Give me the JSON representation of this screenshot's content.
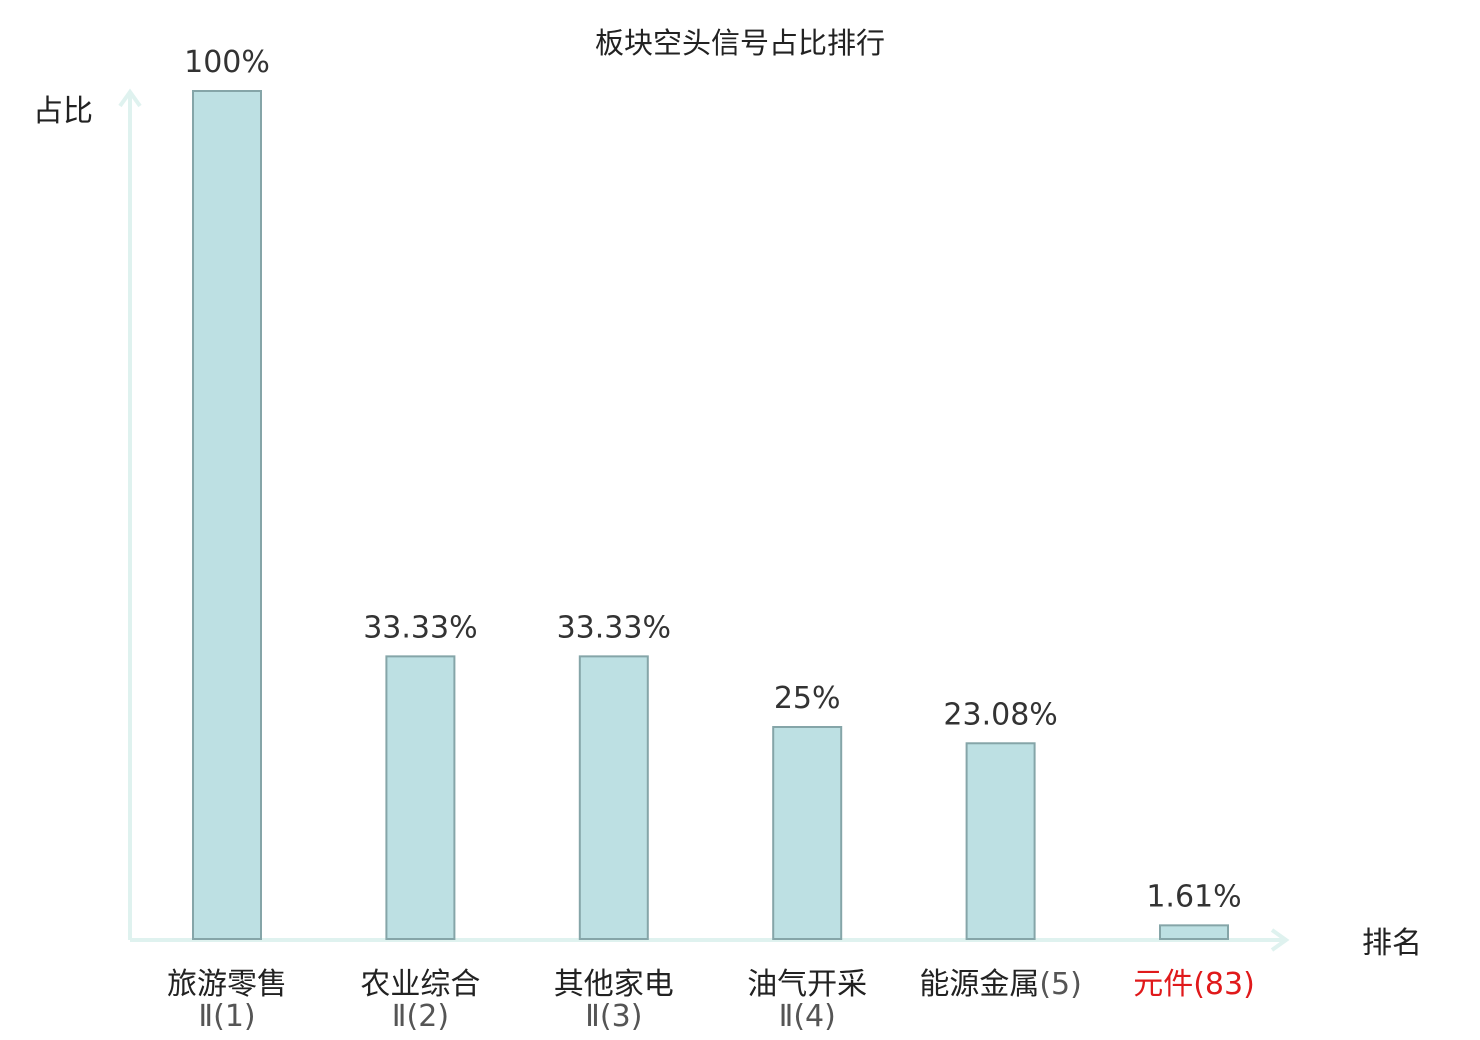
{
  "chart_data": {
    "type": "bar",
    "title": "板块空头信号占比排行",
    "ylabel": "占比",
    "xlabel": "排名",
    "ylim": [
      0,
      100
    ],
    "categories": [
      {
        "name": "旅游零售",
        "rank": "Ⅱ(1)",
        "highlight": false
      },
      {
        "name": "农业综合",
        "rank": "Ⅱ(2)",
        "highlight": false
      },
      {
        "name": "其他家电",
        "rank": "Ⅱ(3)",
        "highlight": false
      },
      {
        "name": "油气开采",
        "rank": "Ⅱ(4)",
        "highlight": false
      },
      {
        "name": "能源金属",
        "rank": "(5)",
        "highlight": false
      },
      {
        "name": "元件",
        "rank": "(83)",
        "highlight": true
      }
    ],
    "values": [
      100,
      33.33,
      33.33,
      25,
      23.08,
      1.61
    ],
    "value_labels": [
      "100%",
      "33.33%",
      "33.33%",
      "25%",
      "23.08%",
      "1.61%"
    ],
    "colors": {
      "bar_fill": "#bde0e3",
      "bar_stroke": "#85a5a8",
      "axis": "#dff2ef",
      "text": "#333333",
      "highlight": "#e0191b"
    }
  }
}
